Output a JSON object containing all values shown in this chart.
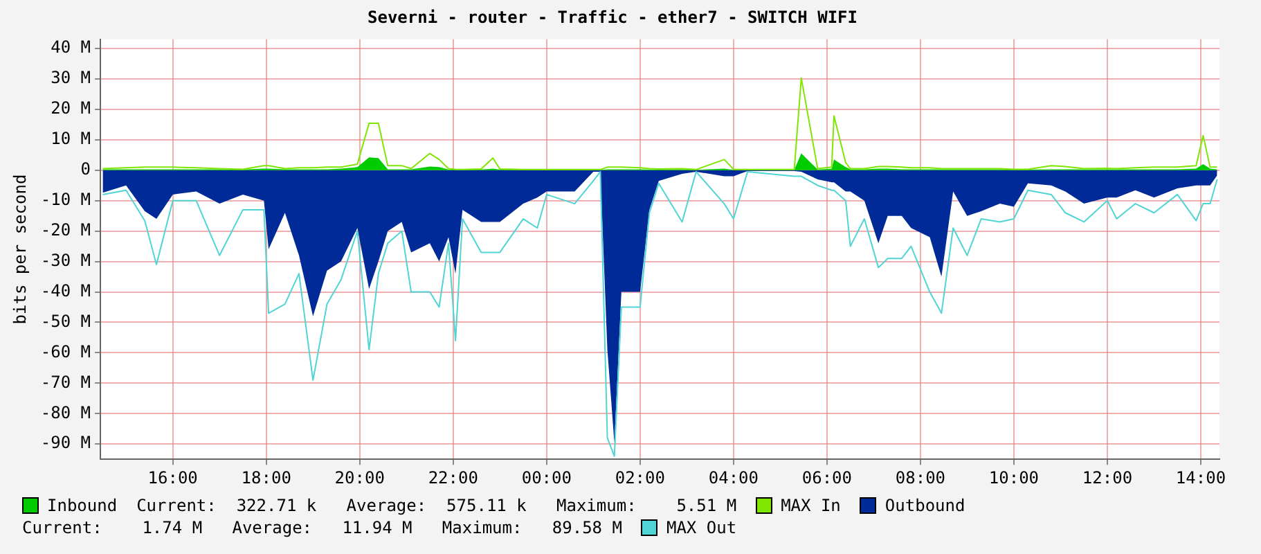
{
  "chart_data": {
    "type": "line",
    "title": "Severni - router - Traffic - ether7 - SWITCH WIFI",
    "ylabel": "bits per second",
    "x": [
      "--01-01T14:30",
      "--01-01T15:00",
      "--01-01T15:24",
      "--01-01T15:39",
      "--01-01T16:00",
      "--01-01T16:30",
      "--01-01T17:00",
      "--01-01T17:30",
      "--01-01T17:57",
      "--01-01T18:03",
      "--01-01T18:24",
      "--01-01T18:42",
      "--01-01T19:00",
      "--01-01T19:18",
      "--01-01T19:36",
      "--01-01T19:57",
      "--01-01T20:12",
      "--01-01T20:24",
      "--01-01T20:36",
      "--01-01T20:54",
      "--01-01T21:06",
      "--01-01T21:30",
      "--01-01T21:42",
      "--01-01T21:54",
      "--01-01T22:03",
      "--01-01T22:12",
      "--01-01T22:36",
      "--01-01T22:51",
      "--01-01T23:00",
      "--01-01T23:30",
      "--01-01T23:48",
      "--01-02T00:00",
      "--01-02T00:36",
      "--01-02T01:00",
      "--01-02T01:09",
      "--01-02T01:18",
      "--01-02T01:27",
      "--01-02T01:36",
      "--01-02T02:00",
      "--01-02T02:12",
      "--01-02T02:24",
      "--01-02T02:54",
      "--01-02T03:12",
      "--01-02T03:48",
      "--01-02T04:00",
      "--01-02T04:18",
      "--01-02T05:18",
      "--01-02T05:27",
      "--01-02T05:48",
      "--01-02T06:06",
      "--01-02T06:09",
      "--01-02T06:24",
      "--01-02T06:30",
      "--01-02T06:48",
      "--01-02T07:06",
      "--01-02T07:18",
      "--01-02T07:36",
      "--01-02T07:48",
      "--01-02T08:12",
      "--01-02T08:27",
      "--01-02T08:42",
      "--01-02T09:00",
      "--01-02T09:18",
      "--01-02T09:42",
      "--01-02T10:00",
      "--01-02T10:18",
      "--01-02T10:48",
      "--01-02T11:06",
      "--01-02T11:30",
      "--01-02T12:00",
      "--01-02T12:12",
      "--01-02T12:36",
      "--01-02T13:00",
      "--01-02T13:30",
      "--01-02T13:54",
      "--01-02T14:03",
      "--01-02T14:12",
      "--01-02T14:21"
    ],
    "xlim": [
      "--01-01T14:27",
      "--01-02T14:24"
    ],
    "xticks": [
      {
        "value": "--01-01T16:00",
        "label": "16:00"
      },
      {
        "value": "--01-01T18:00",
        "label": "18:00"
      },
      {
        "value": "--01-01T20:00",
        "label": "20:00"
      },
      {
        "value": "--01-01T22:00",
        "label": "22:00"
      },
      {
        "value": "--01-02T00:00",
        "label": "00:00"
      },
      {
        "value": "--01-02T02:00",
        "label": "02:00"
      },
      {
        "value": "--01-02T04:00",
        "label": "04:00"
      },
      {
        "value": "--01-02T06:00",
        "label": "06:00"
      },
      {
        "value": "--01-02T08:00",
        "label": "08:00"
      },
      {
        "value": "--01-02T10:00",
        "label": "10:00"
      },
      {
        "value": "--01-02T12:00",
        "label": "12:00"
      },
      {
        "value": "--01-02T14:00",
        "label": "14:00"
      }
    ],
    "ylim": [
      -95,
      43
    ],
    "yticks": [
      {
        "value": 40,
        "label": "40 M"
      },
      {
        "value": 30,
        "label": "30 M"
      },
      {
        "value": 20,
        "label": "20 M"
      },
      {
        "value": 10,
        "label": "10 M"
      },
      0,
      {
        "value": -10,
        "label": "-10 M"
      },
      {
        "value": -20,
        "label": "-20 M"
      },
      {
        "value": -30,
        "label": "-30 M"
      },
      {
        "value": -40,
        "label": "-40 M"
      },
      {
        "value": -50,
        "label": "-50 M"
      },
      {
        "value": -60,
        "label": "-60 M"
      },
      {
        "value": -70,
        "label": "-70 M"
      },
      {
        "value": -80,
        "label": "-80 M"
      },
      {
        "value": -90,
        "label": "-90 M"
      }
    ],
    "grid": true,
    "legend": "bottom",
    "marker": "none",
    "series": [
      {
        "name": "Inbound",
        "type": "area",
        "color": "#00cc00",
        "values": [
          0.3,
          0.3,
          0.3,
          0.3,
          0.3,
          0.3,
          0.3,
          0.2,
          0.5,
          0.5,
          0.3,
          0.3,
          0.3,
          0.3,
          0.5,
          1,
          4.2,
          4,
          0.3,
          0.3,
          0.3,
          1.2,
          1,
          0.2,
          0.2,
          0.1,
          0.2,
          0.5,
          0.2,
          0.1,
          0.1,
          0.1,
          0.1,
          0.1,
          0.1,
          0.3,
          0.3,
          0.3,
          0.3,
          0.2,
          0.2,
          0.3,
          0.1,
          0.5,
          0.1,
          0.1,
          0.1,
          5.5,
          0.2,
          0.5,
          3.5,
          1,
          0.3,
          0.3,
          0.5,
          0.5,
          0.3,
          0.3,
          0.3,
          0.3,
          0.3,
          0.3,
          0.3,
          0.3,
          0.2,
          0.2,
          0.3,
          0.3,
          0.3,
          0.3,
          0.3,
          0.3,
          0.3,
          0.3,
          0.5,
          2,
          0.5,
          0.3
        ]
      },
      {
        "name": "MAX In",
        "type": "line",
        "color": "#7ee600",
        "values": [
          0.5,
          0.8,
          1,
          1,
          1,
          0.8,
          0.5,
          0.3,
          1.5,
          1.5,
          0.5,
          0.8,
          0.8,
          1,
          1,
          2,
          15.4,
          15.4,
          1.5,
          1.5,
          0.5,
          5.5,
          3.5,
          0.5,
          0.3,
          0.2,
          0.4,
          4,
          0.4,
          0.2,
          0.2,
          0.2,
          0.2,
          0.2,
          0.2,
          1,
          1,
          1,
          0.8,
          0.5,
          0.4,
          0.5,
          0.2,
          3.5,
          0.3,
          0.2,
          0.2,
          30.3,
          0.5,
          1,
          17.8,
          2.5,
          0.5,
          0.5,
          1.2,
          1.2,
          1,
          0.8,
          0.8,
          0.5,
          0.5,
          0.5,
          0.5,
          0.5,
          0.3,
          0.3,
          1.5,
          1.2,
          0.5,
          0.6,
          0.5,
          0.8,
          1,
          1,
          1.5,
          11.4,
          1,
          1
        ]
      },
      {
        "name": "Outbound",
        "type": "area",
        "color": "#002a97",
        "values": [
          -7.4,
          -5,
          -13.5,
          -16,
          -8,
          -7,
          -11,
          -8,
          -10,
          -26,
          -14,
          -28,
          -48,
          -33,
          -30,
          -19,
          -39,
          -30,
          -20,
          -17,
          -27,
          -24,
          -30,
          -22,
          -34,
          -13,
          -17,
          -17,
          -17,
          -11,
          -9,
          -7,
          -7,
          -0.5,
          -0.5,
          -59,
          -89.6,
          -40,
          -40,
          -13,
          -3.5,
          -1.2,
          -0.5,
          -2,
          -2,
          -0.3,
          -0.3,
          -0.5,
          -3,
          -4,
          -4,
          -7,
          -7,
          -10,
          -24,
          -15,
          -15,
          -19,
          -22,
          -35,
          -7,
          -15,
          -13.5,
          -11,
          -12,
          -4.3,
          -5,
          -7,
          -11,
          -9,
          -9,
          -6.6,
          -9,
          -6,
          -5,
          -5,
          -5,
          -1.7
        ]
      },
      {
        "name": "MAX Out",
        "type": "line",
        "color": "#50d4d4",
        "values": [
          -8,
          -6.6,
          -16.6,
          -31,
          -10,
          -10,
          -28,
          -13,
          -13,
          -47,
          -44,
          -34,
          -69,
          -44,
          -36,
          -20,
          -59,
          -34,
          -24,
          -20,
          -40,
          -40,
          -45,
          -24,
          -56,
          -16,
          -27,
          -27,
          -27,
          -16,
          -19,
          -8,
          -11,
          -3.5,
          -0.5,
          -88,
          -94,
          -45,
          -45,
          -14,
          -4.3,
          -17,
          -0.5,
          -11,
          -16,
          -0.5,
          -2,
          -2,
          -5,
          -6.6,
          -6.6,
          -10,
          -25,
          -16,
          -32,
          -29,
          -29,
          -25,
          -40,
          -47,
          -19,
          -28,
          -16,
          -17,
          -16,
          -6.6,
          -8,
          -14,
          -17,
          -10,
          -16,
          -11,
          -14,
          -8,
          -16.6,
          -11,
          -11,
          -3
        ]
      }
    ],
    "annotations": [
      "Current:  322.71 k   Average:  575.11 k   Maximum:    5.51 M",
      "Current:    1.74 M   Average:   11.94 M   Maximum:   89.58 M"
    ]
  }
}
